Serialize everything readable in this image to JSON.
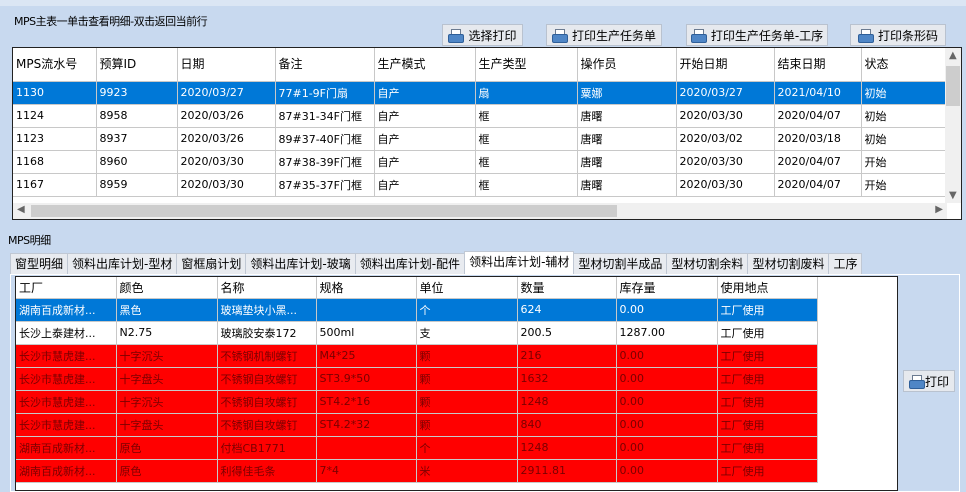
{
  "master": {
    "title": "MPS主表一单击查看明细-双击返回当前行",
    "buttons": [
      "选择打印",
      "打印生产任务单",
      "打印生产任务单-工序",
      "打印条形码"
    ],
    "columns": [
      "MPS流水号",
      "预算ID",
      "日期",
      "备注",
      "生产模式",
      "生产类型",
      "操作员",
      "开始日期",
      "结束日期",
      "状态"
    ],
    "rows": [
      [
        "1130",
        "9923",
        "2020/03/27",
        "77#1-9F门扇",
        "自产",
        "扇",
        "粟娜",
        "2020/03/27",
        "2021/04/10",
        "初始"
      ],
      [
        "1124",
        "8958",
        "2020/03/26",
        "87#31-34F门框",
        "自产",
        "框",
        "唐曙",
        "2020/03/30",
        "2020/04/07",
        "初始"
      ],
      [
        "1123",
        "8937",
        "2020/03/26",
        "89#37-40F门框",
        "自产",
        "框",
        "唐曙",
        "2020/03/02",
        "2020/03/18",
        "初始"
      ],
      [
        "1168",
        "8960",
        "2020/03/30",
        "87#38-39F门框",
        "自产",
        "框",
        "唐曙",
        "2020/03/30",
        "2020/04/07",
        "开始"
      ],
      [
        "1167",
        "8959",
        "2020/03/30",
        "87#35-37F门框",
        "自产",
        "框",
        "唐曙",
        "2020/03/30",
        "2020/04/07",
        "开始"
      ]
    ],
    "selected_row": 0
  },
  "detail": {
    "title": "MPS明细",
    "tabs": [
      "窗型明细",
      "领料出库计划-型材",
      "窗框扇计划",
      "领料出库计划-玻璃",
      "领料出库计划-配件",
      "领料出库计划-辅材",
      "型材切割半成品",
      "型材切割余料",
      "型材切割废料",
      "工序"
    ],
    "active_tab": 5,
    "columns": [
      "工厂",
      "颜色",
      "名称",
      "规格",
      "单位",
      "数量",
      "库存量",
      "使用地点"
    ],
    "rows": [
      [
        "湖南百成新材...",
        "黑色",
        "玻璃垫块小黑...",
        "",
        "个",
        "624",
        "0.00",
        "工厂使用"
      ],
      [
        "长沙上泰建材...",
        "N2.75",
        "玻璃胶安泰172",
        "500ml",
        "支",
        "200.5",
        "1287.00",
        "工厂使用"
      ],
      [
        "长沙市慧虎建...",
        "十字沉头",
        "不锈钢机制螺钉",
        "M4*25",
        "颗",
        "216",
        "0.00",
        "工厂使用"
      ],
      [
        "长沙市慧虎建...",
        "十字盘头",
        "不锈钢自攻螺钉",
        "ST3.9*50",
        "颗",
        "1632",
        "0.00",
        "工厂使用"
      ],
      [
        "长沙市慧虎建...",
        "十字沉头",
        "不锈钢自攻螺钉",
        "ST4.2*16",
        "颗",
        "1248",
        "0.00",
        "工厂使用"
      ],
      [
        "长沙市慧虎建...",
        "十字盘头",
        "不锈钢自攻螺钉",
        "ST4.2*32",
        "颗",
        "840",
        "0.00",
        "工厂使用"
      ],
      [
        "湖南百成新材...",
        "原色",
        "付档CB1771",
        "",
        "个",
        "1248",
        "0.00",
        "工厂使用"
      ],
      [
        "湖南百成新材...",
        "原色",
        "利得佳毛条",
        "7*4",
        "米",
        "2911.81",
        "0.00",
        "工厂使用"
      ]
    ],
    "row_states": [
      "selected",
      "normal",
      "red",
      "red",
      "red",
      "red",
      "red",
      "red"
    ],
    "print_label": "打印"
  },
  "colors": {
    "selected": "#0078d7",
    "shortage": "#ff0000",
    "background": "#c8d9ef"
  }
}
